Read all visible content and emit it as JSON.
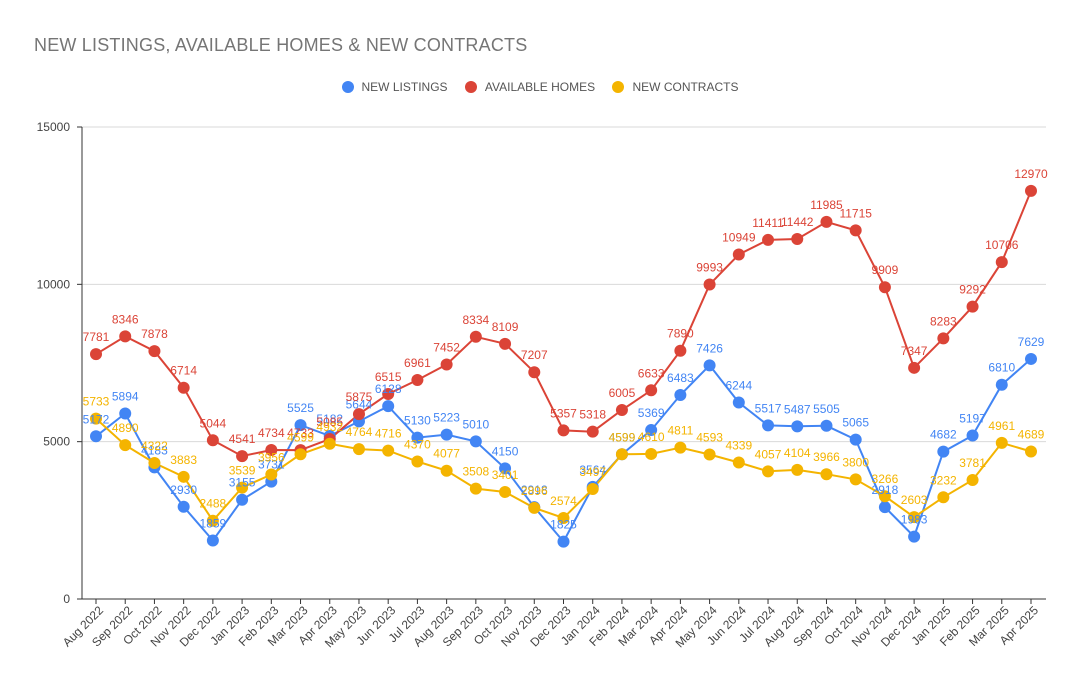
{
  "chart_data": {
    "type": "line",
    "title": "NEW LISTINGS, AVAILABLE HOMES & NEW CONTRACTS",
    "xlabel": "",
    "ylabel": "",
    "ylim": [
      0,
      15000
    ],
    "yticks": [
      0,
      5000,
      10000,
      15000
    ],
    "grid": true,
    "legend_position": "top",
    "categories": [
      "Aug 2022",
      "Sep 2022",
      "Oct 2022",
      "Nov 2022",
      "Dec 2022",
      "Jan 2023",
      "Feb 2023",
      "Mar 2023",
      "Apr 2023",
      "May 2023",
      "Jun 2023",
      "Jul 2023",
      "Aug 2023",
      "Sep 2023",
      "Oct 2023",
      "Nov 2023",
      "Dec 2023",
      "Jan 2024",
      "Feb 2024",
      "Mar 2024",
      "Apr 2024",
      "May 2024",
      "Jun 2024",
      "Jul 2024",
      "Aug 2024",
      "Sep 2024",
      "Oct 2024",
      "Nov 2024",
      "Dec 2024",
      "Jan 2025",
      "Feb 2025",
      "Mar 2025",
      "Apr 2025"
    ],
    "series": [
      {
        "name": "NEW LISTINGS",
        "color": "#4285f4",
        "values": [
          5172,
          5894,
          4183,
          2930,
          1859,
          3155,
          3731,
          5525,
          5182,
          5644,
          6128,
          5130,
          5223,
          5010,
          4150,
          2918,
          1825,
          3564,
          4599,
          5369,
          6483,
          7426,
          6244,
          5517,
          5487,
          5505,
          5065,
          2918,
          1983,
          4682,
          5197,
          6810,
          7629
        ]
      },
      {
        "name": "AVAILABLE HOMES",
        "color": "#db4437",
        "values": [
          7781,
          8346,
          7878,
          6714,
          5044,
          4541,
          4734,
          4733,
          5085,
          5875,
          6515,
          6961,
          7452,
          8334,
          8109,
          7207,
          5357,
          5318,
          6005,
          6633,
          7890,
          9993,
          10949,
          11411,
          11442,
          11985,
          11715,
          9909,
          7347,
          8283,
          9292,
          10706,
          12970
        ]
      },
      {
        "name": "NEW CONTRACTS",
        "color": "#f4b400",
        "values": [
          5733,
          4890,
          4322,
          3883,
          2488,
          3539,
          3956,
          4599,
          4932,
          4764,
          4716,
          4370,
          4077,
          3508,
          3401,
          2896,
          2574,
          3497,
          4599,
          4610,
          4811,
          4593,
          4339,
          4057,
          4104,
          3966,
          3800,
          3266,
          2603,
          3232,
          3781,
          4961,
          4689
        ]
      }
    ]
  }
}
